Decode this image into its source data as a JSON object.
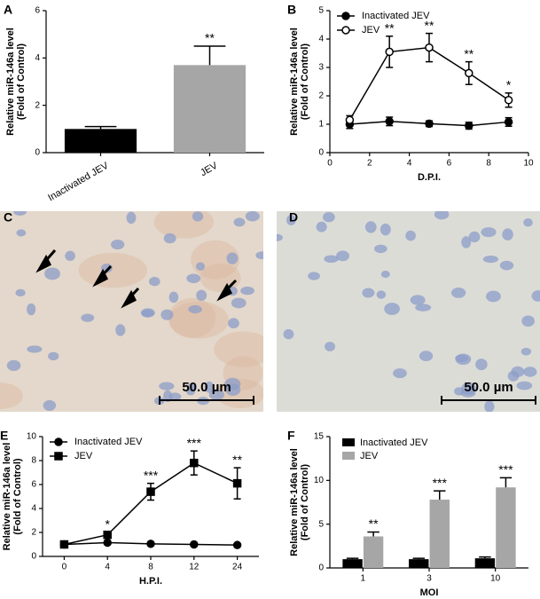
{
  "chart_data": [
    {
      "panel": "A",
      "type": "bar",
      "categories": [
        "Inactivated JEV",
        "JEV"
      ],
      "values": [
        1.0,
        3.7
      ],
      "errors": [
        0.1,
        0.8
      ],
      "colors": [
        "#000000",
        "#a6a6a6"
      ],
      "annotations": [
        null,
        "**"
      ],
      "ylabel": [
        "Relative miR-146a level",
        "(Fold of Control)"
      ],
      "ylim": [
        0,
        6
      ],
      "yticks": [
        0,
        2,
        4,
        6
      ]
    },
    {
      "panel": "B",
      "type": "line",
      "x": [
        1,
        3,
        5,
        7,
        9
      ],
      "xlim": [
        0,
        10
      ],
      "xticks": [
        0,
        2,
        4,
        6,
        8,
        10
      ],
      "series": [
        {
          "name": "Inactivated JEV",
          "color": "#000000",
          "marker": "circle",
          "filled": true,
          "values": [
            1.0,
            1.1,
            1.02,
            0.95,
            1.08
          ],
          "errors": [
            0.15,
            0.15,
            0.1,
            0.12,
            0.15
          ]
        },
        {
          "name": "JEV",
          "color": "#000000",
          "marker": "circle",
          "filled": false,
          "values": [
            1.15,
            3.55,
            3.7,
            2.8,
            1.85
          ],
          "errors": [
            0.15,
            0.55,
            0.5,
            0.4,
            0.25
          ]
        }
      ],
      "annotations": [
        null,
        "**",
        "**",
        "**",
        "*"
      ],
      "xlabel": "D.P.I.",
      "ylabel": [
        "Relative miR-146a level",
        "(Fold of Control)"
      ],
      "ylim": [
        0,
        5
      ],
      "yticks": [
        0,
        1,
        2,
        3,
        4,
        5
      ]
    },
    {
      "panel": "E",
      "type": "line",
      "categories": [
        "0",
        "4",
        "8",
        "12",
        "24"
      ],
      "series": [
        {
          "name": "Inactivated JEV",
          "color": "#000000",
          "marker": "circle",
          "filled": true,
          "values": [
            1.0,
            1.15,
            1.05,
            1.0,
            0.95
          ],
          "errors": [
            0.05,
            0.08,
            0.08,
            0.06,
            0.06
          ]
        },
        {
          "name": "JEV",
          "color": "#000000",
          "marker": "square",
          "filled": true,
          "values": [
            1.0,
            1.8,
            5.4,
            7.8,
            6.1
          ],
          "errors": [
            0.1,
            0.2,
            0.7,
            1.0,
            1.3
          ]
        }
      ],
      "annotations": [
        null,
        "*",
        "***",
        "***",
        "**"
      ],
      "xlabel": "H.P.I.",
      "ylabel": [
        "Relative miR-146a level",
        "(Fold of Control)"
      ],
      "ylim": [
        0,
        10
      ],
      "yticks": [
        0,
        2,
        4,
        6,
        8,
        10
      ]
    },
    {
      "panel": "F",
      "type": "bar",
      "categories": [
        "1",
        "3",
        "10"
      ],
      "series": [
        {
          "name": "Inactivated JEV",
          "color": "#000000",
          "values": [
            1.0,
            1.0,
            1.1
          ],
          "errors": [
            0.1,
            0.1,
            0.15
          ]
        },
        {
          "name": "JEV",
          "color": "#a6a6a6",
          "values": [
            3.6,
            7.8,
            9.2
          ],
          "errors": [
            0.5,
            1.0,
            1.1
          ]
        }
      ],
      "annotations": [
        "**",
        "***",
        "***"
      ],
      "xlabel": "MOI",
      "ylabel": [
        "Relative miR-146a level",
        "(Fold of Control)"
      ],
      "ylim": [
        0,
        15
      ],
      "yticks": [
        0,
        5,
        10,
        15
      ]
    }
  ],
  "images": [
    {
      "panel": "C",
      "scale_label": "50.0 µm"
    },
    {
      "panel": "D",
      "scale_label": "50.0 µm"
    }
  ]
}
